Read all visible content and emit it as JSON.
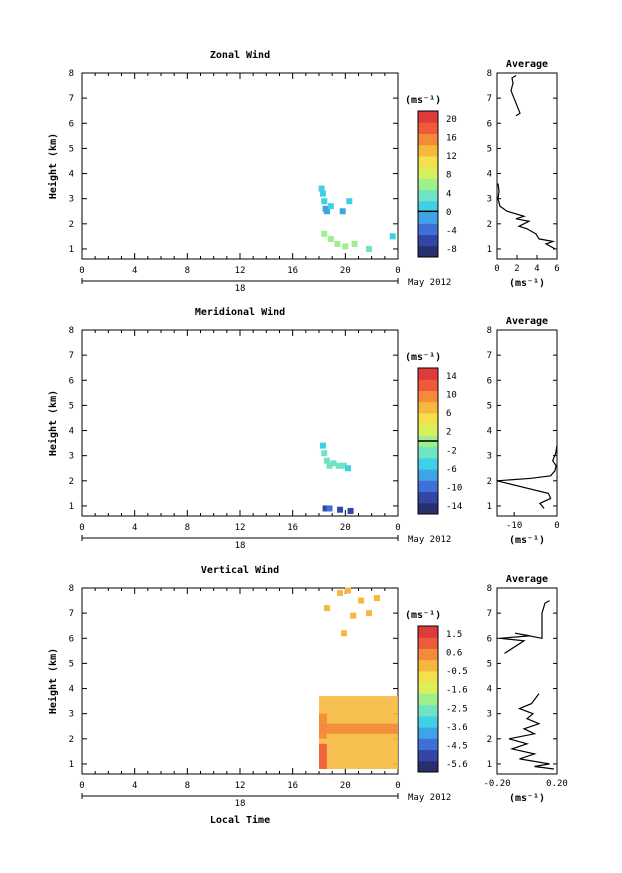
{
  "page": {
    "xlabel": "Local Time",
    "date_label": "May 2012",
    "date_axis_tick": "18"
  },
  "chart_data": [
    {
      "type": "heatmap",
      "title": "Zonal Wind",
      "ylabel": "Height (km)",
      "xlabel": "",
      "xlim": [
        0,
        24
      ],
      "ylim": [
        0.6,
        8
      ],
      "x_ticks": [
        "0",
        "4",
        "8",
        "12",
        "16",
        "20",
        "0"
      ],
      "y_ticks": [
        "1",
        "2",
        "3",
        "4",
        "5",
        "6",
        "7",
        "8"
      ],
      "colorbar": {
        "unit": "(ms⁻¹)",
        "min": -10,
        "max": 22,
        "ticks": [
          "20",
          "16",
          "12",
          "8",
          "4",
          "0",
          "-4",
          "-8"
        ],
        "zero_line": 0
      },
      "cells": [
        {
          "t": 18.2,
          "h": 3.4,
          "v": 2
        },
        {
          "t": 18.3,
          "h": 3.2,
          "v": 1
        },
        {
          "t": 18.4,
          "h": 2.9,
          "v": 0
        },
        {
          "t": 18.5,
          "h": 2.6,
          "v": -1
        },
        {
          "t": 18.6,
          "h": 2.5,
          "v": -2
        },
        {
          "t": 18.9,
          "h": 2.7,
          "v": 1
        },
        {
          "t": 19.8,
          "h": 2.5,
          "v": -1
        },
        {
          "t": 20.3,
          "h": 2.9,
          "v": 0
        },
        {
          "t": 18.4,
          "h": 1.6,
          "v": 6
        },
        {
          "t": 18.9,
          "h": 1.4,
          "v": 7
        },
        {
          "t": 19.4,
          "h": 1.2,
          "v": 6
        },
        {
          "t": 20.0,
          "h": 1.1,
          "v": 5
        },
        {
          "t": 20.7,
          "h": 1.2,
          "v": 6
        },
        {
          "t": 21.8,
          "h": 1.0,
          "v": 4
        },
        {
          "t": 23.6,
          "h": 1.5,
          "v": 0
        }
      ],
      "average": {
        "title": "Average",
        "xlabel": "(ms⁻¹)",
        "xlim": [
          0,
          6
        ],
        "x_ticks": [
          "0",
          "2",
          "4",
          "6"
        ],
        "profile": [
          [
            5.8,
            1.0
          ],
          [
            4.9,
            1.2
          ],
          [
            5.6,
            1.3
          ],
          [
            4.2,
            1.4
          ],
          [
            3.9,
            1.6
          ],
          [
            3.0,
            1.8
          ],
          [
            2.2,
            1.9
          ],
          [
            3.2,
            2.1
          ],
          [
            1.9,
            2.2
          ],
          [
            2.7,
            2.3
          ],
          [
            1.0,
            2.5
          ],
          [
            0.3,
            2.7
          ],
          [
            0.1,
            3.0
          ],
          [
            0.2,
            3.3
          ],
          [
            0.1,
            3.6
          ]
        ],
        "profile_upper": [
          [
            1.9,
            6.3
          ],
          [
            2.3,
            6.4
          ],
          [
            1.4,
            7.3
          ],
          [
            1.6,
            7.6
          ],
          [
            1.5,
            7.8
          ],
          [
            1.9,
            7.9
          ]
        ]
      }
    },
    {
      "type": "heatmap",
      "title": "Meridional Wind",
      "ylabel": "Height (km)",
      "xlabel": "",
      "xlim": [
        0,
        24
      ],
      "ylim": [
        0.6,
        8
      ],
      "x_ticks": [
        "0",
        "4",
        "8",
        "12",
        "16",
        "20",
        "0"
      ],
      "y_ticks": [
        "1",
        "2",
        "3",
        "4",
        "5",
        "6",
        "7",
        "8"
      ],
      "colorbar": {
        "unit": "(ms⁻¹)",
        "min": -16,
        "max": 16,
        "ticks": [
          "14",
          "10",
          "6",
          "2",
          "-2",
          "-6",
          "-10",
          "-14"
        ],
        "zero_line": 0
      },
      "cells": [
        {
          "t": 18.3,
          "h": 3.4,
          "v": -4
        },
        {
          "t": 18.4,
          "h": 3.1,
          "v": -2
        },
        {
          "t": 18.6,
          "h": 2.8,
          "v": -3
        },
        {
          "t": 18.8,
          "h": 2.6,
          "v": -2
        },
        {
          "t": 19.1,
          "h": 2.7,
          "v": -3
        },
        {
          "t": 19.5,
          "h": 2.6,
          "v": -2
        },
        {
          "t": 19.9,
          "h": 2.6,
          "v": -3
        },
        {
          "t": 20.2,
          "h": 2.5,
          "v": -4
        },
        {
          "t": 18.5,
          "h": 0.9,
          "v": -12
        },
        {
          "t": 18.8,
          "h": 0.9,
          "v": -11
        },
        {
          "t": 19.6,
          "h": 0.85,
          "v": -12
        },
        {
          "t": 20.4,
          "h": 0.8,
          "v": -13
        }
      ],
      "average": {
        "title": "Average",
        "xlabel": "(ms⁻¹)",
        "xlim": [
          -14,
          0
        ],
        "x_ticks": [
          "-10",
          "0"
        ],
        "profile": [
          [
            -3,
            0.9
          ],
          [
            -4,
            1.1
          ],
          [
            -1.5,
            1.3
          ],
          [
            -2,
            1.5
          ],
          [
            -14,
            2.0
          ],
          [
            -6,
            2.1
          ],
          [
            -1.5,
            2.2
          ],
          [
            -0.5,
            2.4
          ],
          [
            -0.2,
            2.6
          ],
          [
            -1,
            2.8
          ],
          [
            -0.3,
            3.1
          ],
          [
            0,
            3.4
          ]
        ]
      }
    },
    {
      "type": "heatmap",
      "title": "Vertical Wind",
      "ylabel": "Height (km)",
      "xlabel": "Local Time",
      "xlim": [
        0,
        24
      ],
      "ylim": [
        0.6,
        8
      ],
      "x_ticks": [
        "0",
        "4",
        "8",
        "12",
        "16",
        "20",
        "0"
      ],
      "y_ticks": [
        "1",
        "2",
        "3",
        "4",
        "5",
        "6",
        "7",
        "8"
      ],
      "colorbar": {
        "unit": "(ms⁻¹)",
        "min": -6.5,
        "max": 2.5,
        "ticks": [
          "1.5",
          "0.6",
          "-0.5",
          "-1.6",
          "-2.5",
          "-3.6",
          "-4.5",
          "-5.6"
        ]
      },
      "cells": [
        {
          "t": 19.6,
          "h": 7.8,
          "v": 0.3
        },
        {
          "t": 20.2,
          "h": 7.9,
          "v": 0.1
        },
        {
          "t": 21.2,
          "h": 7.5,
          "v": 0.2
        },
        {
          "t": 21.8,
          "h": 7.0,
          "v": 0.4
        },
        {
          "t": 22.4,
          "h": 7.6,
          "v": 0.1
        },
        {
          "t": 18.6,
          "h": 7.2,
          "v": 0.2
        },
        {
          "t": 20.6,
          "h": 6.9,
          "v": 0.1
        },
        {
          "t": 19.9,
          "h": 6.2,
          "v": 0.2
        }
      ],
      "blocks": [
        {
          "t0": 18.0,
          "t1": 24.0,
          "h0": 0.8,
          "h1": 3.7,
          "v": 0.1
        },
        {
          "t0": 18.0,
          "t1": 24.0,
          "h0": 2.2,
          "h1": 2.6,
          "v": 0.6
        },
        {
          "t0": 18.0,
          "t1": 18.6,
          "h0": 0.8,
          "h1": 1.8,
          "v": 1.2
        },
        {
          "t0": 18.0,
          "t1": 18.6,
          "h0": 2.0,
          "h1": 3.0,
          "v": 0.6
        }
      ],
      "average": {
        "title": "Average",
        "xlabel": "(ms⁻¹)",
        "xlim": [
          -0.2,
          0.2
        ],
        "x_ticks": [
          "-0.20",
          "0.20"
        ],
        "profile": [
          [
            0.18,
            0.8
          ],
          [
            0.05,
            0.9
          ],
          [
            0.15,
            1.0
          ],
          [
            -0.05,
            1.2
          ],
          [
            0.05,
            1.4
          ],
          [
            -0.1,
            1.6
          ],
          [
            0.0,
            1.8
          ],
          [
            -0.12,
            2.0
          ],
          [
            0.05,
            2.2
          ],
          [
            -0.02,
            2.4
          ],
          [
            0.08,
            2.6
          ],
          [
            0.0,
            2.8
          ],
          [
            0.04,
            3.0
          ],
          [
            -0.05,
            3.2
          ],
          [
            0.03,
            3.4
          ],
          [
            0.08,
            3.8
          ]
        ],
        "profile_upper": [
          [
            -0.15,
            5.4
          ],
          [
            -0.02,
            5.9
          ],
          [
            -0.18,
            6.0
          ],
          [
            0.02,
            6.1
          ],
          [
            -0.08,
            6.2
          ],
          [
            0.1,
            6.0
          ],
          [
            0.1,
            6.6
          ],
          [
            0.1,
            7.0
          ],
          [
            0.12,
            7.4
          ],
          [
            0.15,
            7.5
          ]
        ]
      }
    }
  ]
}
